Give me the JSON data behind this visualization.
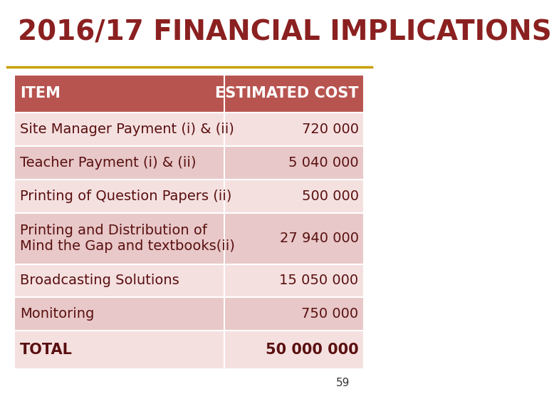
{
  "title": "2016/17 FINANCIAL IMPLICATIONS",
  "title_color": "#8B2020",
  "title_fontsize": 28,
  "header_bg": "#B85450",
  "header_text_color": "#FFFFFF",
  "row_bg_dark": "#E8C8C8",
  "row_bg_light": "#F5E0E0",
  "border_color": "#FFFFFF",
  "col1_header": "ITEM",
  "col2_header": "ESTIMATED COST",
  "rows": [
    {
      "item": "Site Manager Payment (i) & (ii)",
      "cost": "720 000",
      "multiline": false
    },
    {
      "item": "Teacher Payment (i) & (ii)",
      "cost": "5 040 000",
      "multiline": false
    },
    {
      "item": "Printing of Question Papers (ii)",
      "cost": "500 000",
      "multiline": false
    },
    {
      "item": "Printing and Distribution of\nMind the Gap and textbooks(ii)",
      "cost": "27 940 000",
      "multiline": true
    },
    {
      "item": "Broadcasting Solutions",
      "cost": "15 050 000",
      "multiline": false
    },
    {
      "item": "Monitoring",
      "cost": "750 000",
      "multiline": false
    }
  ],
  "total_item": "TOTAL",
  "total_cost": "50 000 000",
  "page_number": "59",
  "divider_color": "#C8A000",
  "item_fontsize": 14,
  "cost_fontsize": 14,
  "header_fontsize": 15,
  "col_split": 0.6,
  "background_color": "#FFFFFF",
  "text_color_dark": "#5A1010"
}
